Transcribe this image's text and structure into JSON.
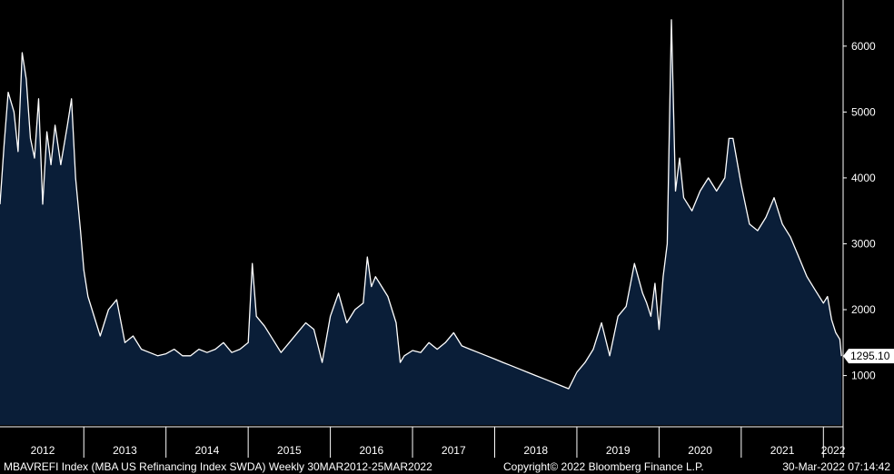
{
  "chart_data": {
    "type": "area",
    "title": "",
    "xlabel": "",
    "ylabel": "",
    "ylim": [
      250,
      6700
    ],
    "yticks": [
      1000,
      2000,
      3000,
      4000,
      5000,
      6000
    ],
    "ytick_labels": [
      "1000",
      "2000",
      "3000",
      "4000",
      "5000",
      "6000"
    ],
    "x_range": [
      2011.98,
      2022.24
    ],
    "xtick_labels": [
      "2012",
      "2013",
      "2014",
      "2015",
      "2016",
      "2017",
      "2018",
      "2019",
      "2020",
      "2021",
      "2022"
    ],
    "last_value_label": "1295.10",
    "grid": false,
    "colors": {
      "fill": "#0a1e38",
      "line": "#ffffff",
      "background": "#000000",
      "label_box": "#ffffff"
    },
    "series": [
      {
        "x": [
          2011.98,
          2012.03,
          2012.08,
          2012.15,
          2012.2,
          2012.25,
          2012.3,
          2012.35,
          2012.4,
          2012.45,
          2012.5,
          2012.55,
          2012.6,
          2012.65,
          2012.72,
          2012.8,
          2012.85,
          2012.9,
          2012.96,
          2013.0,
          2013.05,
          2013.1,
          2013.15,
          2013.2,
          2013.3,
          2013.4,
          2013.5,
          2013.6,
          2013.7,
          2013.8,
          2013.9,
          2014.0,
          2014.1,
          2014.2,
          2014.3,
          2014.4,
          2014.5,
          2014.6,
          2014.7,
          2014.8,
          2014.9,
          2015.0,
          2015.05,
          2015.1,
          2015.2,
          2015.3,
          2015.4,
          2015.5,
          2015.6,
          2015.7,
          2015.8,
          2015.9,
          2016.0,
          2016.1,
          2016.2,
          2016.3,
          2016.4,
          2016.45,
          2016.5,
          2016.55,
          2016.6,
          2016.7,
          2016.8,
          2016.85,
          2016.9,
          2017.0,
          2017.1,
          2017.2,
          2017.3,
          2017.4,
          2017.5,
          2017.6,
          2017.7,
          2017.8,
          2017.9,
          2018.0,
          2018.1,
          2018.2,
          2018.3,
          2018.4,
          2018.5,
          2018.6,
          2018.7,
          2018.8,
          2018.9,
          2019.0,
          2019.1,
          2019.2,
          2019.3,
          2019.4,
          2019.5,
          2019.6,
          2019.7,
          2019.8,
          2019.85,
          2019.9,
          2019.95,
          2020.0,
          2020.05,
          2020.1,
          2020.15,
          2020.2,
          2020.25,
          2020.3,
          2020.4,
          2020.5,
          2020.6,
          2020.7,
          2020.8,
          2020.85,
          2020.9,
          2021.0,
          2021.1,
          2021.2,
          2021.3,
          2021.4,
          2021.5,
          2021.6,
          2021.7,
          2021.8,
          2021.9,
          2022.0,
          2022.05,
          2022.1,
          2022.15,
          2022.2,
          2022.22
        ],
        "values": [
          3600,
          4500,
          5300,
          5000,
          4400,
          5900,
          5500,
          4600,
          4300,
          5200,
          3600,
          4700,
          4200,
          4800,
          4200,
          4800,
          5200,
          4000,
          3200,
          2600,
          2200,
          2000,
          1800,
          1600,
          2000,
          2150,
          1500,
          1600,
          1400,
          1350,
          1300,
          1330,
          1400,
          1300,
          1300,
          1400,
          1350,
          1400,
          1500,
          1350,
          1400,
          1500,
          2700,
          1900,
          1750,
          1550,
          1350,
          1500,
          1650,
          1800,
          1700,
          1200,
          1900,
          2250,
          1800,
          2000,
          2100,
          2800,
          2350,
          2500,
          2400,
          2200,
          1800,
          1200,
          1300,
          1380,
          1350,
          1500,
          1400,
          1500,
          1650,
          1450,
          1400,
          1350,
          1300,
          1250,
          1200,
          1150,
          1100,
          1050,
          1000,
          950,
          900,
          850,
          800,
          1050,
          1200,
          1400,
          1800,
          1300,
          1900,
          2050,
          2700,
          2250,
          2100,
          1900,
          2400,
          1700,
          2500,
          3000,
          6400,
          3800,
          4300,
          3700,
          3500,
          3800,
          4000,
          3800,
          4000,
          4600,
          4600,
          3900,
          3300,
          3200,
          3400,
          3700,
          3300,
          3100,
          2800,
          2500,
          2300,
          2100,
          2200,
          1850,
          1650,
          1550,
          1295
        ]
      }
    ]
  },
  "footer": {
    "description": "MBAVREFI Index (MBA US Refinancing Index SWDA)  Weekly 30MAR2012-25MAR2022",
    "copyright": "Copyright© 2022 Bloomberg Finance L.P.",
    "timestamp": "30-Mar-2022 07:14:42"
  }
}
